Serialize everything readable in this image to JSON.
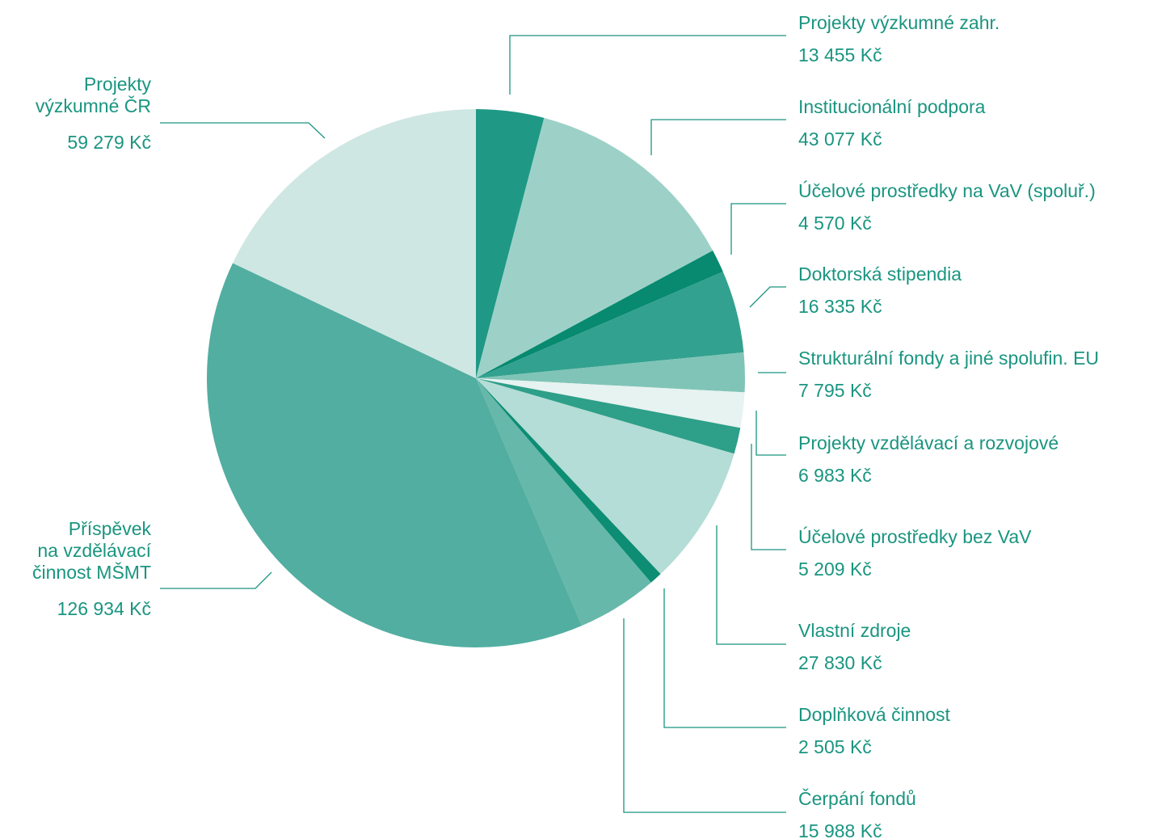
{
  "chart_data": {
    "type": "pie",
    "unit": "Kč",
    "slices": [
      {
        "name": "Projekty výzkumné zahr.",
        "value": 13455,
        "value_label": "13 455 Kč",
        "color": "#1f9986"
      },
      {
        "name": "Institucionální podpora",
        "value": 43077,
        "value_label": "43 077 Kč",
        "color": "#9dd1c8"
      },
      {
        "name": "Účelové prostředky na VaV (spoluř.)",
        "value": 4570,
        "value_label": "4 570 Kč",
        "color": "#078a6f"
      },
      {
        "name": "Doktorská stipendia",
        "value": 16335,
        "value_label": "16 335 Kč",
        "color": "#33a18f"
      },
      {
        "name": "Strukturální fondy a jiné spolufin. EU",
        "value": 7795,
        "value_label": "7 795 Kč",
        "color": "#80c4b7"
      },
      {
        "name": "Projekty vzdělávací a rozvojové",
        "value": 6983,
        "value_label": "6 983 Kč",
        "color": "#e6f3f0"
      },
      {
        "name": "Účelové prostředky bez VaV",
        "value": 5209,
        "value_label": "5 209 Kč",
        "color": "#2e9f89"
      },
      {
        "name": "Vlastní zdroje",
        "value": 27830,
        "value_label": "27 830 Kč",
        "color": "#b3ddd6"
      },
      {
        "name": "Doplňková činnost",
        "value": 2505,
        "value_label": "2 505 Kč",
        "color": "#0d8d73"
      },
      {
        "name": "Čerpání fondů",
        "value": 15988,
        "value_label": "15 988 Kč",
        "color": "#66b8aa"
      },
      {
        "name": "Příspěvek na vzdělávací činnost MŠMT",
        "value": 126934,
        "value_label": "126 934 Kč",
        "color": "#52aea0"
      },
      {
        "name": "Projekty výzkumné ČR",
        "value": 59279,
        "value_label": "59 279 Kč",
        "color": "#cfe7e3"
      }
    ],
    "label_lines": [
      [
        "Projekty výzkumné zahr."
      ],
      [
        "Institucionální podpora"
      ],
      [
        "Účelové prostředky na VaV (spoluř.)"
      ],
      [
        "Doktorská stipendia"
      ],
      [
        "Strukturální fondy a jiné spolufin. EU"
      ],
      [
        "Projekty vzdělávací a rozvojové"
      ],
      [
        "Účelové prostředky bez VaV"
      ],
      [
        "Vlastní zdroje"
      ],
      [
        "Doplňková činnost"
      ],
      [
        "Čerpání fondů"
      ],
      [
        "Příspěvek",
        "na vzdělávací",
        "činnost MŠMT"
      ],
      [
        "Projekty",
        "výzkumné ČR"
      ]
    ],
    "start_angle": "12 o'clock",
    "direction": "clockwise",
    "legend": "none",
    "accent_color": "#1a9580"
  }
}
